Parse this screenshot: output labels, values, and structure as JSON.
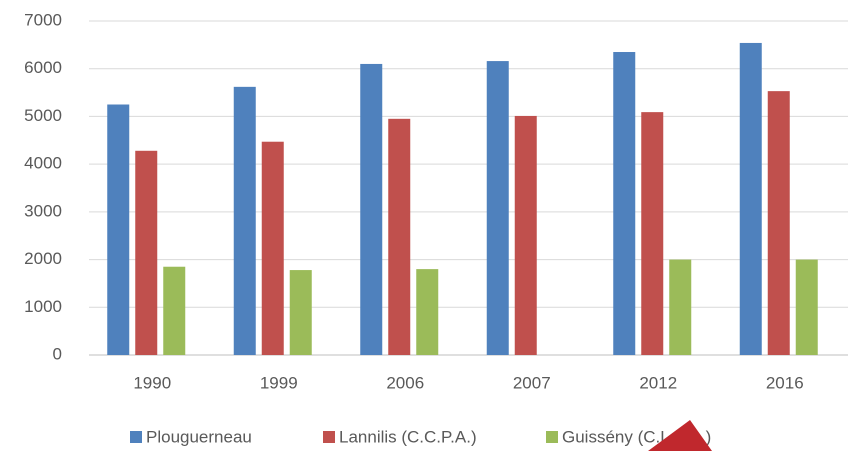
{
  "chart_data": {
    "type": "bar",
    "categories": [
      "1990",
      "1999",
      "2006",
      "2007",
      "2012",
      "2016"
    ],
    "series": [
      {
        "name": "Plouguerneau",
        "color": "#4f81bd",
        "values": [
          5250,
          5620,
          6100,
          6160,
          6350,
          6540
        ]
      },
      {
        "name": "Lannilis (C.C.P.A.)",
        "color": "#c0504d",
        "values": [
          4280,
          4470,
          4950,
          5010,
          5090,
          5530
        ]
      },
      {
        "name": "Guissény (C.L.C.L.)",
        "color": "#9bbb59",
        "values": [
          1850,
          1780,
          1800,
          null,
          2000,
          2000
        ]
      }
    ],
    "ylim": [
      0,
      7000
    ],
    "yticks": [
      0,
      1000,
      2000,
      3000,
      4000,
      5000,
      6000,
      7000
    ],
    "grid": true,
    "legend": "bottom"
  }
}
